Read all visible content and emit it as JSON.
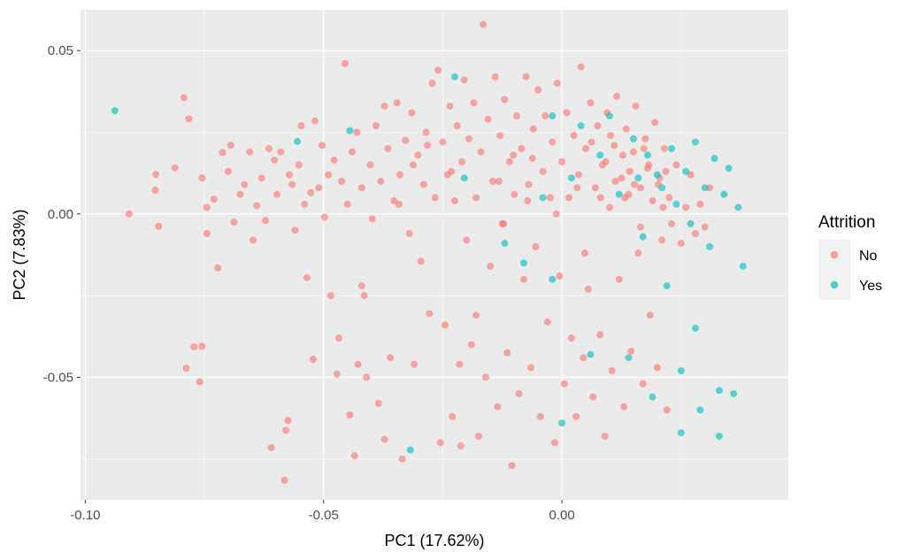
{
  "chart_data": {
    "type": "scatter",
    "title": "",
    "xlabel": "PC1 (17.62%)",
    "ylabel": "PC2 (7.83%)",
    "xlim": [
      -0.101,
      0.0475
    ],
    "ylim": [
      -0.0875,
      0.0625
    ],
    "x_ticks": [
      -0.1,
      -0.05,
      0.0
    ],
    "x_tick_labels": [
      "-0.10",
      "-0.05",
      "0.00"
    ],
    "y_ticks": [
      -0.05,
      0.0,
      0.05
    ],
    "y_tick_labels": [
      "-0.05",
      "0.00",
      "0.05"
    ],
    "grid": true,
    "legend": {
      "title": "Attrition",
      "position": "right"
    },
    "series": [
      {
        "name": "No",
        "color": "#F8766D",
        "points": [
          [
            -0.0908,
            0.0
          ],
          [
            -0.0852,
            0.0121
          ],
          [
            -0.0853,
            0.0073
          ],
          [
            -0.0846,
            -0.0038
          ],
          [
            -0.0812,
            0.0141
          ],
          [
            -0.0793,
            0.0356
          ],
          [
            -0.0783,
            0.0291
          ],
          [
            -0.0788,
            -0.0472
          ],
          [
            -0.0772,
            -0.0407
          ],
          [
            -0.076,
            -0.0514
          ],
          [
            -0.0755,
            -0.0405
          ],
          [
            -0.0755,
            0.011
          ],
          [
            -0.0745,
            0.002
          ],
          [
            -0.0745,
            -0.006
          ],
          [
            -0.073,
            0.0045
          ],
          [
            -0.0722,
            -0.0165
          ],
          [
            -0.0712,
            0.0188
          ],
          [
            -0.07,
            0.013
          ],
          [
            -0.0695,
            0.021
          ],
          [
            -0.0688,
            -0.0025
          ],
          [
            -0.0675,
            0.006
          ],
          [
            -0.0666,
            0.009
          ],
          [
            -0.0655,
            0.019
          ],
          [
            -0.0648,
            -0.008
          ],
          [
            -0.064,
            0.0025
          ],
          [
            -0.063,
            0.011
          ],
          [
            -0.0622,
            -0.002
          ],
          [
            -0.0615,
            0.02
          ],
          [
            -0.061,
            -0.0715
          ],
          [
            -0.0603,
            0.0165
          ],
          [
            -0.0598,
            0.006
          ],
          [
            -0.059,
            0.019
          ],
          [
            -0.0582,
            -0.0815
          ],
          [
            -0.0579,
            -0.0662
          ],
          [
            -0.0575,
            -0.0632
          ],
          [
            -0.0572,
            0.012
          ],
          [
            -0.0566,
            0.009
          ],
          [
            -0.056,
            -0.005
          ],
          [
            -0.0552,
            0.015
          ],
          [
            -0.0547,
            0.027
          ],
          [
            -0.054,
            0.003
          ],
          [
            -0.0535,
            -0.0195
          ],
          [
            -0.0527,
            0.0065
          ],
          [
            -0.0522,
            -0.0445
          ],
          [
            -0.0518,
            0.0285
          ],
          [
            -0.051,
            0.008
          ],
          [
            -0.0503,
            0.021
          ],
          [
            -0.0498,
            -0.001
          ],
          [
            -0.049,
            0.012
          ],
          [
            -0.0485,
            -0.025
          ],
          [
            -0.0478,
            0.0165
          ],
          [
            -0.0472,
            -0.049
          ],
          [
            -0.0468,
            -0.038
          ],
          [
            -0.0462,
            0.01
          ],
          [
            -0.0455,
            0.046
          ],
          [
            -0.045,
            0.003
          ],
          [
            -0.0445,
            -0.0615
          ],
          [
            -0.044,
            0.019
          ],
          [
            -0.0435,
            -0.074
          ],
          [
            -0.043,
            0.025
          ],
          [
            -0.0428,
            -0.046
          ],
          [
            -0.042,
            0.008
          ],
          [
            -0.0415,
            -0.025
          ],
          [
            -0.041,
            -0.05
          ],
          [
            -0.0402,
            0.015
          ],
          [
            -0.0398,
            -0.0015
          ],
          [
            -0.039,
            0.027
          ],
          [
            -0.0385,
            -0.058
          ],
          [
            -0.038,
            0.01
          ],
          [
            -0.0372,
            -0.069
          ],
          [
            -0.0365,
            0.02
          ],
          [
            -0.036,
            -0.044
          ],
          [
            -0.0352,
            0.004
          ],
          [
            -0.0346,
            0.034
          ],
          [
            -0.034,
            0.012
          ],
          [
            -0.0335,
            -0.075
          ],
          [
            -0.0328,
            0.0225
          ],
          [
            -0.032,
            -0.006
          ],
          [
            -0.0315,
            0.031
          ],
          [
            -0.031,
            -0.046
          ],
          [
            -0.0302,
            0.018
          ],
          [
            -0.0296,
            -0.0145
          ],
          [
            -0.029,
            0.009
          ],
          [
            -0.0285,
            0.025
          ],
          [
            -0.0278,
            -0.0305
          ],
          [
            -0.0272,
            0.04
          ],
          [
            -0.0266,
            0.005
          ],
          [
            -0.026,
            0.044
          ],
          [
            -0.0255,
            -0.07
          ],
          [
            -0.025,
            0.022
          ],
          [
            -0.0245,
            -0.034
          ],
          [
            -0.024,
            0.012
          ],
          [
            -0.0235,
            0.033
          ],
          [
            -0.023,
            -0.062
          ],
          [
            -0.0225,
            0.004
          ],
          [
            -0.022,
            0.027
          ],
          [
            -0.0215,
            -0.046
          ],
          [
            -0.021,
            0.016
          ],
          [
            -0.0205,
            0.041
          ],
          [
            -0.02,
            -0.008
          ],
          [
            -0.0195,
            0.023
          ],
          [
            -0.019,
            -0.04
          ],
          [
            -0.0185,
            0.034
          ],
          [
            -0.018,
            0.005
          ],
          [
            -0.0175,
            -0.068
          ],
          [
            -0.017,
            0.019
          ],
          [
            -0.0165,
            0.058
          ],
          [
            -0.016,
            -0.05
          ],
          [
            -0.0155,
            0.029
          ],
          [
            -0.015,
            -0.016
          ],
          [
            -0.0145,
            0.01
          ],
          [
            -0.014,
            0.042
          ],
          [
            -0.0135,
            -0.059
          ],
          [
            -0.013,
            0.024
          ],
          [
            -0.0125,
            -0.003
          ],
          [
            -0.012,
            0.035
          ],
          [
            -0.0115,
            -0.0425
          ],
          [
            -0.011,
            0.016
          ],
          [
            -0.0105,
            -0.077
          ],
          [
            -0.01,
            0.006
          ],
          [
            -0.0095,
            0.03
          ],
          [
            -0.009,
            -0.055
          ],
          [
            -0.0085,
            0.02
          ],
          [
            -0.008,
            -0.02
          ],
          [
            -0.0075,
            0.042
          ],
          [
            -0.007,
            0.009
          ],
          [
            -0.0065,
            -0.047
          ],
          [
            -0.006,
            0.026
          ],
          [
            -0.0055,
            -0.01
          ],
          [
            -0.005,
            0.038
          ],
          [
            -0.0045,
            -0.062
          ],
          [
            -0.004,
            0.013
          ],
          [
            -0.0035,
            0.03
          ],
          [
            -0.003,
            -0.033
          ],
          [
            -0.0025,
            0.005
          ],
          [
            -0.002,
            0.022
          ],
          [
            -0.0015,
            -0.07
          ],
          [
            -0.001,
            0.04
          ],
          [
            -0.0005,
            -0.019
          ],
          [
            0.0,
            0.016
          ],
          [
            0.0005,
            -0.052
          ],
          [
            0.001,
            0.031
          ],
          [
            0.0015,
            0.005
          ],
          [
            0.002,
            -0.038
          ],
          [
            0.0025,
            0.024
          ],
          [
            0.003,
            -0.062
          ],
          [
            0.0035,
            0.012
          ],
          [
            0.004,
            0.045
          ],
          [
            0.0045,
            -0.044
          ],
          [
            0.005,
            0.02
          ],
          [
            0.0055,
            -0.023
          ],
          [
            0.006,
            0.034
          ],
          [
            0.0065,
            -0.056
          ],
          [
            0.007,
            0.008
          ],
          [
            0.0075,
            0.027
          ],
          [
            0.008,
            -0.037
          ],
          [
            0.0085,
            0.015
          ],
          [
            0.009,
            -0.068
          ],
          [
            0.0095,
            0.031
          ],
          [
            0.01,
            0.002
          ],
          [
            0.0105,
            -0.048
          ],
          [
            0.011,
            0.021
          ],
          [
            0.0115,
            0.036
          ],
          [
            0.012,
            -0.02
          ],
          [
            0.0125,
            0.011
          ],
          [
            0.013,
            -0.059
          ],
          [
            0.0135,
            0.026
          ],
          [
            0.014,
            0.006
          ],
          [
            0.0145,
            -0.042
          ],
          [
            0.015,
            0.019
          ],
          [
            0.0155,
            0.033
          ],
          [
            0.016,
            -0.012
          ],
          [
            0.0165,
            0.008
          ],
          [
            0.017,
            -0.052
          ],
          [
            0.0175,
            0.023
          ],
          [
            0.018,
            0.014
          ],
          [
            0.0185,
            -0.031
          ],
          [
            0.019,
            0.004
          ],
          [
            0.0195,
            0.028
          ],
          [
            0.02,
            -0.047
          ],
          [
            0.0205,
            0.011
          ],
          [
            0.021,
            -0.008
          ],
          [
            0.0215,
            0.02
          ],
          [
            0.022,
            -0.06
          ],
          [
            0.0225,
            0.005
          ],
          [
            0.023,
            -0.003
          ],
          [
            0.024,
            0.015
          ],
          [
            0.025,
            -0.009
          ],
          [
            0.026,
            0.002
          ],
          [
            0.027,
            0.012
          ],
          [
            0.028,
            -0.006
          ],
          [
            0.029,
            0.003
          ],
          [
            0.03,
            -0.004
          ],
          [
            0.031,
            0.008
          ],
          [
            -0.042,
            -0.022
          ],
          [
            -0.0372,
            0.033
          ],
          [
            -0.0212,
            -0.071
          ],
          [
            -0.018,
            -0.031
          ],
          [
            -0.0062,
            0.017
          ],
          [
            0.0048,
            -0.012
          ],
          [
            0.0081,
            0.005
          ],
          [
            0.0128,
            0.018
          ],
          [
            0.0165,
            -0.004
          ],
          [
            0.0202,
            0.009
          ],
          [
            0.0218,
            0.013
          ],
          [
            0.0062,
            0.022
          ],
          [
            0.0092,
            0.016
          ],
          [
            0.0112,
            0.01
          ],
          [
            0.0142,
            0.013
          ],
          [
            0.0172,
            0.02
          ],
          [
            -0.0132,
            0.01
          ],
          [
            -0.0102,
            0.018
          ],
          [
            -0.0072,
            0.004
          ],
          [
            0.0032,
            0.008
          ],
          [
            -0.0282,
            0.021
          ],
          [
            -0.0312,
            0.015
          ],
          [
            -0.0342,
            0.003
          ],
          [
            -0.0232,
            0.013
          ],
          [
            -0.0122,
            -0.003
          ],
          [
            -0.0012,
            0.0
          ],
          [
            0.0102,
            0.024
          ],
          [
            0.0132,
            0.005
          ],
          [
            0.0152,
            0.009
          ],
          [
            0.0182,
            0.015
          ],
          [
            0.0212,
            0.002
          ]
        ]
      },
      {
        "name": "Yes",
        "color": "#00BFC4",
        "points": [
          [
            -0.0938,
            0.0316
          ],
          [
            -0.0555,
            0.0222
          ],
          [
            -0.0445,
            0.0255
          ],
          [
            -0.0318,
            -0.0722
          ],
          [
            -0.0225,
            0.042
          ],
          [
            -0.0205,
            0.011
          ],
          [
            -0.012,
            -0.009
          ],
          [
            -0.008,
            -0.015
          ],
          [
            -0.004,
            0.005
          ],
          [
            -0.002,
            -0.02
          ],
          [
            -0.002,
            0.03
          ],
          [
            0.0,
            -0.064
          ],
          [
            0.002,
            0.011
          ],
          [
            0.004,
            0.027
          ],
          [
            0.006,
            -0.043
          ],
          [
            0.008,
            0.018
          ],
          [
            0.01,
            0.03
          ],
          [
            0.012,
            0.006
          ],
          [
            0.014,
            -0.044
          ],
          [
            0.015,
            0.023
          ],
          [
            0.016,
            0.011
          ],
          [
            0.017,
            -0.007
          ],
          [
            0.018,
            0.018
          ],
          [
            0.019,
            -0.056
          ],
          [
            0.02,
            0.012
          ],
          [
            0.021,
            0.008
          ],
          [
            0.022,
            -0.022
          ],
          [
            0.023,
            0.02
          ],
          [
            0.024,
            0.003
          ],
          [
            0.025,
            -0.048
          ],
          [
            0.026,
            0.013
          ],
          [
            0.027,
            -0.003
          ],
          [
            0.028,
            0.022
          ],
          [
            0.029,
            -0.06
          ],
          [
            0.03,
            0.008
          ],
          [
            0.031,
            -0.01
          ],
          [
            0.032,
            0.017
          ],
          [
            0.033,
            -0.054
          ],
          [
            0.034,
            0.006
          ],
          [
            0.035,
            0.014
          ],
          [
            0.036,
            -0.055
          ],
          [
            0.037,
            0.002
          ],
          [
            0.038,
            -0.016
          ],
          [
            0.025,
            -0.067
          ],
          [
            0.033,
            -0.068
          ],
          [
            0.028,
            -0.035
          ]
        ]
      }
    ]
  }
}
